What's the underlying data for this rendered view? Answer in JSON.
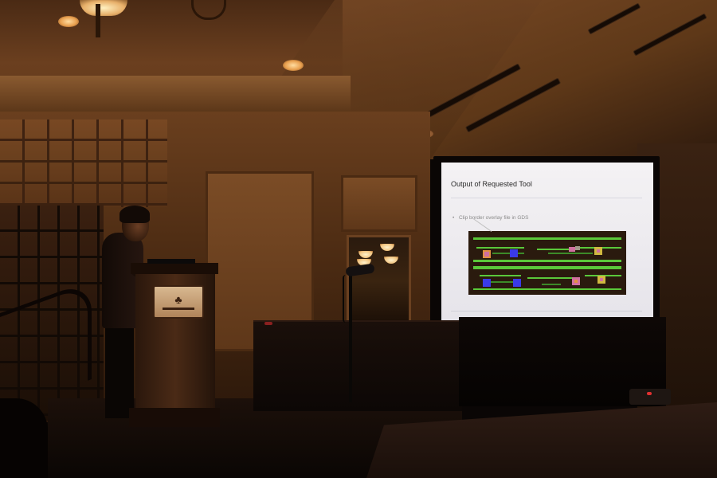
{
  "scene": {
    "description_kind": "photo",
    "colors": {
      "wall_warm": "#6a3f1e",
      "screen_bg": "#f0eef2",
      "layout_green": "#5ac83a",
      "layout_blue": "#3a3ae8",
      "layout_bg": "#2a1a0e"
    }
  },
  "slide": {
    "title": "Output of Requested Tool",
    "bullet": "Clip border overlay file in GDS",
    "bullet_marker": "•"
  },
  "podium": {
    "logo_icon": "tree-icon",
    "logo_glyph": "♣"
  }
}
